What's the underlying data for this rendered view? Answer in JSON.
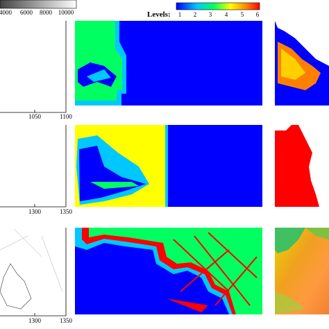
{
  "grayscale_colorbar": {
    "ticks": [
      "4000",
      "6000",
      "8000",
      "10000"
    ]
  },
  "levels_colorbar": {
    "label": "Levels:",
    "ticks": [
      "1",
      "2",
      "3",
      "4",
      "5",
      "6"
    ]
  },
  "panels": [
    {
      "x_ticks": [
        "1050",
        "1100"
      ]
    },
    {
      "x_ticks": [
        "1300",
        "1350"
      ]
    },
    {
      "x_ticks": [
        "1300",
        "1350"
      ]
    }
  ]
}
